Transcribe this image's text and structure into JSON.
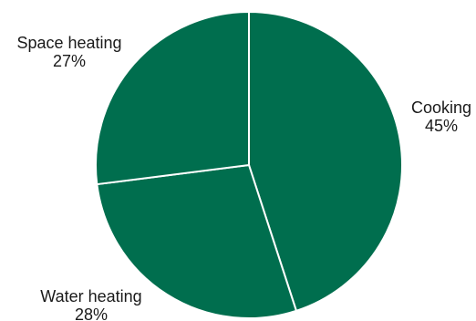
{
  "chart_data": {
    "type": "pie",
    "categories": [
      "Cooking",
      "Water heating",
      "Space heating"
    ],
    "values": [
      45,
      28,
      27
    ],
    "value_labels": [
      "45%",
      "28%",
      "27%"
    ],
    "title": "",
    "legend": "none",
    "slice_color": "#006e4e",
    "separator_color": "#ffffff"
  }
}
